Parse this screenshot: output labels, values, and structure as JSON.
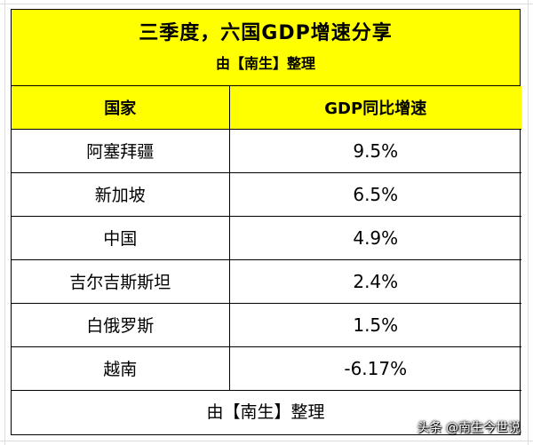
{
  "banner": {
    "title": "三季度，六国GDP增速分享",
    "subtitle": "由【南生】整理"
  },
  "table": {
    "headers": [
      "国家",
      "GDP同比增速"
    ],
    "rows": [
      {
        "country": "阿塞拜疆",
        "growth": "9.5%"
      },
      {
        "country": "新加坡",
        "growth": "6.5%"
      },
      {
        "country": "中国",
        "growth": "4.9%"
      },
      {
        "country": "吉尔吉斯斯坦",
        "growth": "2.4%"
      },
      {
        "country": "白俄罗斯",
        "growth": "1.5%"
      },
      {
        "country": "越南",
        "growth": "-6.17%"
      }
    ],
    "footer": "由【南生】整理"
  },
  "watermark": "头条 @南生今世说",
  "colors": {
    "header_fill": "#ffff00",
    "border": "#000000",
    "gridline": "#dcdcdc"
  }
}
